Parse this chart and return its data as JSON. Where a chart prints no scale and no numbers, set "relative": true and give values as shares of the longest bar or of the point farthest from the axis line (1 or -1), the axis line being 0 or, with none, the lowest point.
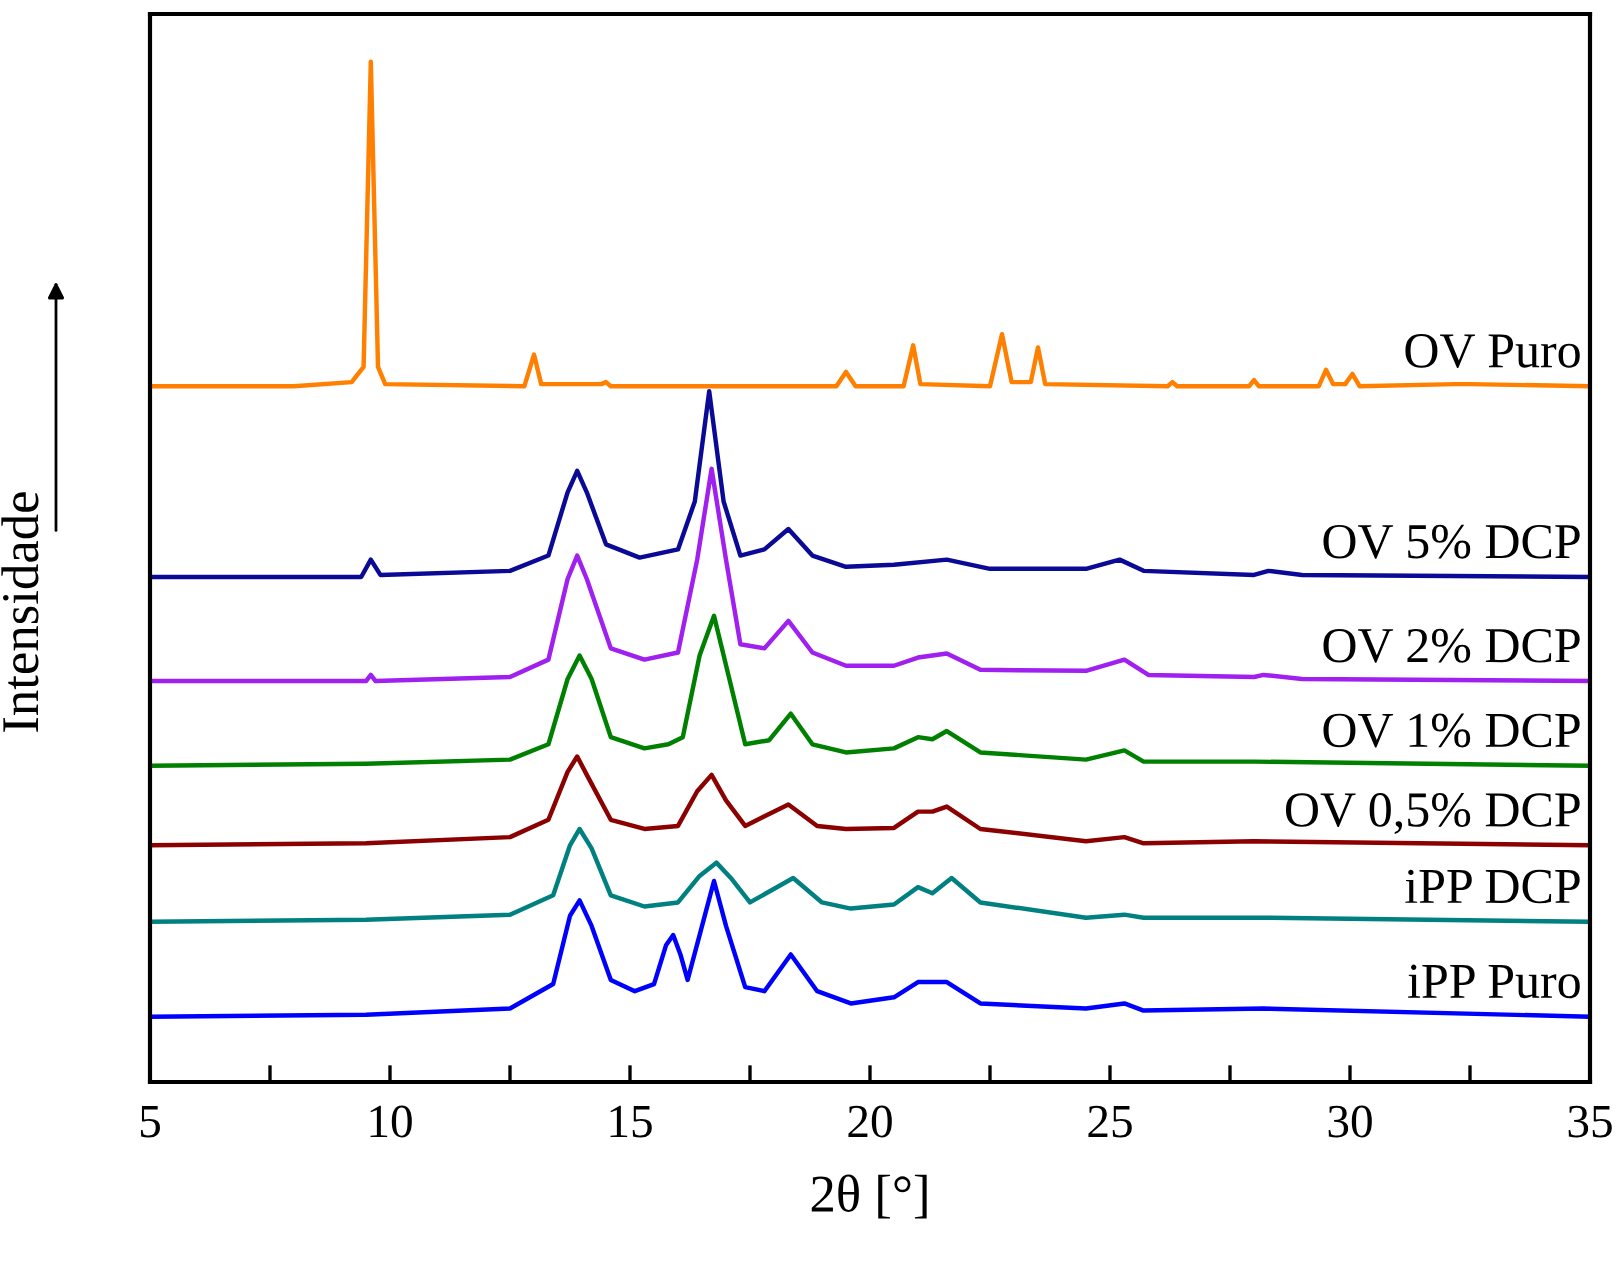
{
  "chart_data": {
    "type": "line",
    "relative": true,
    "xlabel": "2θ [°]",
    "ylabel": "Intensidade",
    "legend": false,
    "grid": false,
    "marker": "none",
    "line_style": "solid",
    "xlim": [
      5,
      35
    ],
    "xticks": [
      5,
      {
        "value": 7.5,
        "label": null
      },
      10,
      {
        "value": 12.5,
        "label": null
      },
      15,
      {
        "value": 17.5,
        "label": null
      },
      20,
      {
        "value": 22.5,
        "label": null
      },
      25,
      {
        "value": 27.5,
        "label": null
      },
      30,
      {
        "value": 32.5,
        "label": null
      },
      35
    ],
    "series": [
      {
        "name": "OV Puro",
        "color": "#ff8000",
        "x": [
          5,
          8,
          9.2,
          9.45,
          9.6,
          9.75,
          9.9,
          12.8,
          13.0,
          13.15,
          14.4,
          14.5,
          14.6,
          19.3,
          19.5,
          19.7,
          20.7,
          20.9,
          21.05,
          22.5,
          22.75,
          22.95,
          23.35,
          23.5,
          23.65,
          26.2,
          26.3,
          26.4,
          27.9,
          28.0,
          28.1,
          29.35,
          29.5,
          29.65,
          29.9,
          30.05,
          30.2,
          32.2,
          32.5,
          35
        ],
        "values": [
          0.682,
          0.682,
          0.686,
          0.701,
          1.0,
          0.701,
          0.684,
          0.682,
          0.713,
          0.684,
          0.684,
          0.686,
          0.682,
          0.682,
          0.696,
          0.682,
          0.682,
          0.722,
          0.684,
          0.682,
          0.733,
          0.686,
          0.686,
          0.72,
          0.684,
          0.682,
          0.686,
          0.682,
          0.682,
          0.688,
          0.682,
          0.682,
          0.698,
          0.684,
          0.684,
          0.694,
          0.682,
          0.684,
          0.684,
          0.682
        ]
      },
      {
        "name": "OV 5% DCP",
        "color": "#0a0a96",
        "x": [
          5,
          9.4,
          9.6,
          9.8,
          12.5,
          13.3,
          13.7,
          13.9,
          14.1,
          14.5,
          15.2,
          16.0,
          16.35,
          16.65,
          16.95,
          17.3,
          17.8,
          18.3,
          18.8,
          19.5,
          20.5,
          21.6,
          22.5,
          24.5,
          25.2,
          25.7,
          28.0,
          28.3,
          29,
          35
        ],
        "values": [
          0.495,
          0.495,
          0.512,
          0.497,
          0.501,
          0.516,
          0.578,
          0.599,
          0.578,
          0.527,
          0.514,
          0.522,
          0.569,
          0.677,
          0.569,
          0.516,
          0.522,
          0.542,
          0.516,
          0.505,
          0.507,
          0.512,
          0.503,
          0.503,
          0.512,
          0.501,
          0.497,
          0.501,
          0.497,
          0.495
        ]
      },
      {
        "name": "OV 2% DCP",
        "color": "#a020f0",
        "x": [
          5,
          9.5,
          9.6,
          9.7,
          12.5,
          13.3,
          13.7,
          13.9,
          14.1,
          14.6,
          15.3,
          16.0,
          16.4,
          16.7,
          17.0,
          17.3,
          17.8,
          18.3,
          18.8,
          19.5,
          20.5,
          21.0,
          21.6,
          22.3,
          24.5,
          25.3,
          25.8,
          28,
          28.2,
          29,
          35
        ],
        "values": [
          0.393,
          0.393,
          0.399,
          0.393,
          0.397,
          0.414,
          0.493,
          0.516,
          0.493,
          0.425,
          0.414,
          0.421,
          0.512,
          0.601,
          0.512,
          0.429,
          0.425,
          0.452,
          0.421,
          0.408,
          0.408,
          0.416,
          0.42,
          0.404,
          0.403,
          0.414,
          0.399,
          0.397,
          0.399,
          0.395,
          0.393
        ]
      },
      {
        "name": "OV 1% DCP",
        "color": "#008000",
        "x": [
          5,
          9.5,
          12.5,
          13.3,
          13.7,
          13.95,
          14.2,
          14.6,
          15.3,
          15.8,
          16.1,
          16.45,
          16.75,
          17.05,
          17.4,
          17.9,
          18.35,
          18.8,
          19.5,
          20.5,
          21.0,
          21.3,
          21.6,
          22.3,
          24.5,
          25.3,
          25.7,
          28,
          35
        ],
        "values": [
          0.31,
          0.312,
          0.316,
          0.331,
          0.395,
          0.418,
          0.395,
          0.338,
          0.327,
          0.331,
          0.338,
          0.418,
          0.457,
          0.399,
          0.331,
          0.335,
          0.361,
          0.331,
          0.323,
          0.327,
          0.338,
          0.336,
          0.344,
          0.323,
          0.316,
          0.325,
          0.314,
          0.314,
          0.31
        ]
      },
      {
        "name": "OV 0,5% DCP",
        "color": "#8b0000",
        "x": [
          5,
          9.5,
          12.5,
          13.3,
          13.7,
          13.9,
          14.1,
          14.6,
          15.3,
          16.0,
          16.4,
          16.7,
          17.0,
          17.4,
          18.3,
          18.9,
          19.5,
          20.5,
          21.0,
          21.3,
          21.6,
          22.3,
          24.5,
          25.3,
          25.7,
          28,
          35
        ],
        "values": [
          0.232,
          0.234,
          0.24,
          0.257,
          0.304,
          0.319,
          0.301,
          0.257,
          0.248,
          0.251,
          0.285,
          0.301,
          0.276,
          0.251,
          0.272,
          0.251,
          0.248,
          0.249,
          0.265,
          0.265,
          0.27,
          0.248,
          0.236,
          0.24,
          0.234,
          0.236,
          0.232
        ]
      },
      {
        "name": "iPP DCP",
        "color": "#008080",
        "x": [
          5,
          9.5,
          12.5,
          13.4,
          13.75,
          13.95,
          14.2,
          14.6,
          15.3,
          16.0,
          16.45,
          16.8,
          17.1,
          17.5,
          18.4,
          19.0,
          19.6,
          20.5,
          21.0,
          21.3,
          21.7,
          22.3,
          24.5,
          25.3,
          25.7,
          28.2,
          35
        ],
        "values": [
          0.157,
          0.159,
          0.164,
          0.183,
          0.232,
          0.248,
          0.229,
          0.183,
          0.172,
          0.176,
          0.202,
          0.215,
          0.2,
          0.176,
          0.2,
          0.176,
          0.17,
          0.174,
          0.191,
          0.185,
          0.2,
          0.176,
          0.161,
          0.164,
          0.161,
          0.161,
          0.157
        ]
      },
      {
        "name": "iPP Puro",
        "color": "#0000ff",
        "x": [
          5,
          9.5,
          12.5,
          13.4,
          13.75,
          13.95,
          14.2,
          14.6,
          15.1,
          15.5,
          15.75,
          15.9,
          16.05,
          16.2,
          16.45,
          16.75,
          17.0,
          17.4,
          17.8,
          18.35,
          18.9,
          19.6,
          20.5,
          21.0,
          21.6,
          22.3,
          24.5,
          25.3,
          25.7,
          28.2,
          35
        ],
        "values": [
          0.064,
          0.066,
          0.072,
          0.096,
          0.163,
          0.178,
          0.153,
          0.1,
          0.089,
          0.096,
          0.134,
          0.144,
          0.125,
          0.1,
          0.144,
          0.197,
          0.153,
          0.093,
          0.089,
          0.125,
          0.089,
          0.077,
          0.083,
          0.098,
          0.098,
          0.077,
          0.072,
          0.077,
          0.07,
          0.072,
          0.064
        ]
      }
    ]
  }
}
